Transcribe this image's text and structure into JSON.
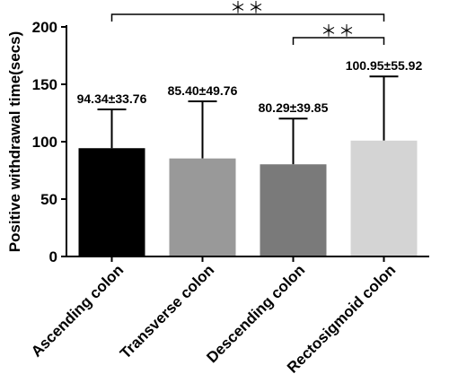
{
  "chart_data": {
    "type": "bar",
    "title": "",
    "xlabel": "",
    "ylabel": "Positive withdrawal time(secs)",
    "ylim": [
      0,
      200
    ],
    "yticks": [
      "0",
      "50",
      "100",
      "150",
      "200"
    ],
    "categories": [
      "Ascending colon",
      "Transverse colon",
      "Descending  colon",
      "Rectosigmoid colon"
    ],
    "values": [
      94.34,
      85.4,
      80.29,
      100.95
    ],
    "errors": [
      33.76,
      49.76,
      39.85,
      55.92
    ],
    "data_labels": [
      "94.34±33.76",
      "85.40±49.76",
      "80.29±39.85",
      "100.95±55.92"
    ],
    "bar_colors": [
      "#000000",
      "#999999",
      "#7a7a7a",
      "#d4d4d4"
    ],
    "significance": [
      {
        "from": 0,
        "to": 3,
        "label": "＊＊"
      },
      {
        "from": 2,
        "to": 3,
        "label": "＊＊"
      }
    ],
    "grid": false
  }
}
